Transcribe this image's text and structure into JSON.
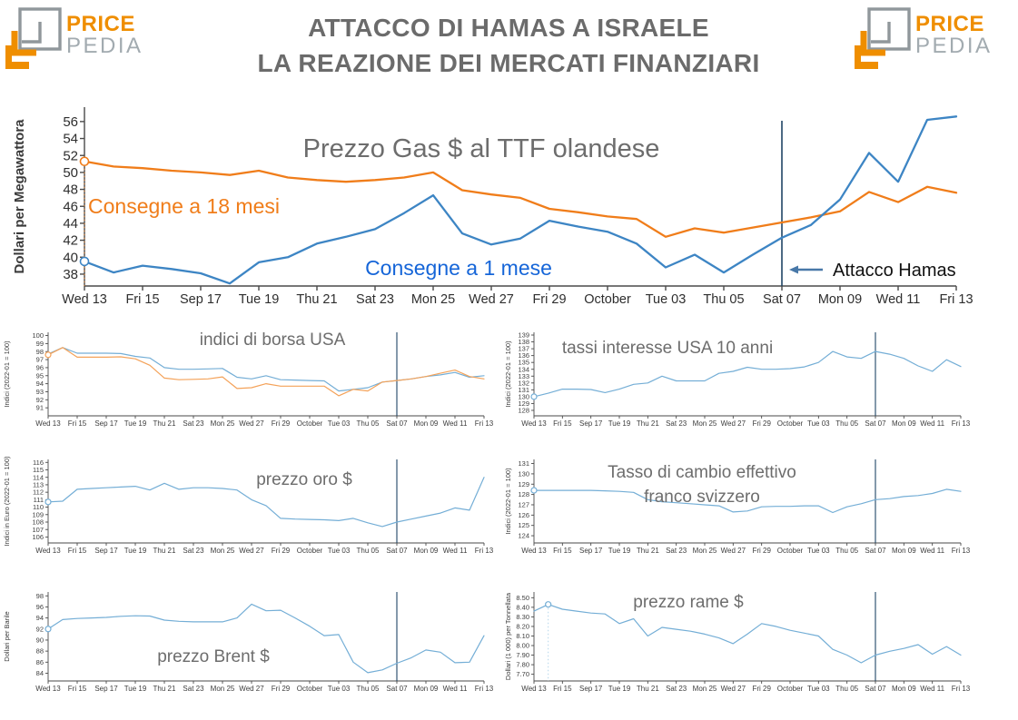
{
  "header": {
    "title_line1": "ATTACCO DI HAMAS A ISRAELE",
    "title_line2": "LA REAZIONE DEI MERCATI FINANZIARI",
    "logo_word_top": "PRICE",
    "logo_word_bottom": "PEDIA"
  },
  "icons": {
    "logo_icon": "pricepedia-nested-squares-icon"
  },
  "colors": {
    "main_orange": "#f07d1a",
    "main_blue": "#3d85c4",
    "small_blue": "#74aed6",
    "small_orange": "#f4a259",
    "event_line": "#1f4566",
    "series_label_blue_text": "#1565d8",
    "arrow": "#4878a8",
    "chart_title_gray": "#6d6d6d",
    "axis": "#4a4a4a",
    "logo_orange": "#ef8e00",
    "logo_gray": "#a2abb0"
  },
  "chart_data": [
    {
      "id": "gas-ttf",
      "type": "line",
      "title": "Prezzo Gas $ al TTF olandese",
      "ylabel": "Dollari per Megawattora",
      "categories": [
        "Wed 13",
        "Fri 15",
        "Sep 17",
        "Tue 19",
        "Thu 21",
        "Sat 23",
        "Mon 25",
        "Wed 27",
        "Fri 29",
        "October",
        "Tue 03",
        "Thu 05",
        "Sat 07",
        "Mon 09",
        "Wed 11",
        "Fri 13"
      ],
      "ytick_labels": [
        "38",
        "40",
        "42",
        "44",
        "46",
        "48",
        "50",
        "52",
        "54",
        "56"
      ],
      "ylim": [
        36.6,
        57.7
      ],
      "grid": false,
      "event_line_index": 24,
      "event_label": "Attacco Hamas",
      "series": [
        {
          "name": "Consegne a 18 mesi",
          "color": "#f07d1a",
          "marker_index": 0,
          "dropline_index": 0,
          "values": [
            51.3,
            50.7,
            50.5,
            50.2,
            50.0,
            49.7,
            50.2,
            49.4,
            49.1,
            48.9,
            49.1,
            49.4,
            50.0,
            47.9,
            47.4,
            47.0,
            45.7,
            45.3,
            44.8,
            44.5,
            42.4,
            43.4,
            42.9,
            43.5,
            44.1,
            44.7,
            45.4,
            47.7,
            46.5,
            48.3,
            47.6
          ]
        },
        {
          "name": "Consegne a 1 mese",
          "color": "#3d85c4",
          "marker_index": 0,
          "values": [
            39.5,
            38.2,
            39.0,
            38.6,
            38.1,
            36.9,
            39.4,
            40.0,
            41.6,
            42.4,
            43.3,
            45.2,
            47.3,
            42.8,
            41.5,
            42.2,
            44.3,
            43.6,
            43.0,
            41.6,
            38.8,
            40.3,
            38.2,
            40.3,
            42.3,
            43.8,
            46.8,
            52.3,
            48.9,
            56.2,
            56.6
          ]
        }
      ]
    },
    {
      "id": "borsa-usa",
      "type": "line",
      "title": "indici di borsa USA",
      "ylabel": "Indici (2022-01 = 100)",
      "categories": [
        "Wed 13",
        "Fri 15",
        "Sep 17",
        "Tue 19",
        "Thu 21",
        "Sat 23",
        "Mon 25",
        "Wed 27",
        "Fri 29",
        "October",
        "Tue 03",
        "Thu 05",
        "Sat 07",
        "Mon 09",
        "Wed 11",
        "Fri 13"
      ],
      "ytick_labels": [
        "91",
        "92",
        "93",
        "94",
        "95",
        "96",
        "97",
        "98",
        "99",
        "100"
      ],
      "ylim": [
        90.0,
        100.4
      ],
      "grid": false,
      "event_line_index": 24,
      "series": [
        {
          "color": "#74aed6",
          "values": [
            97.7,
            98.5,
            97.8,
            97.8,
            97.8,
            97.75,
            97.4,
            97.2,
            96.0,
            95.8,
            95.8,
            95.85,
            95.9,
            94.8,
            94.6,
            95.0,
            94.5,
            94.45,
            94.4,
            94.35,
            93.1,
            93.3,
            93.5,
            94.2,
            94.4,
            94.6,
            94.9,
            95.1,
            95.4,
            94.8,
            95.0
          ]
        },
        {
          "color": "#f4a259",
          "marker_index": 0,
          "values": [
            97.6,
            98.5,
            97.3,
            97.3,
            97.3,
            97.35,
            97.1,
            96.3,
            94.7,
            94.5,
            94.55,
            94.6,
            94.85,
            93.4,
            93.5,
            94.0,
            93.7,
            93.7,
            93.7,
            93.7,
            92.5,
            93.3,
            93.1,
            94.2,
            94.4,
            94.6,
            94.9,
            95.3,
            95.7,
            94.9,
            94.6
          ]
        }
      ]
    },
    {
      "id": "tassi-usa",
      "type": "line",
      "title": "tassi interesse USA 10 anni",
      "ylabel": "Indici (2022-01 = 100)",
      "categories": [
        "Wed 13",
        "Fri 15",
        "Sep 17",
        "Tue 19",
        "Thu 21",
        "Sat 23",
        "Mon 25",
        "Wed 27",
        "Fri 29",
        "October",
        "Tue 03",
        "Thu 05",
        "Sat 07",
        "Mon 09",
        "Wed 11",
        "Fri 13"
      ],
      "ytick_labels": [
        "128",
        "129",
        "130",
        "131",
        "132",
        "133",
        "134",
        "135",
        "136",
        "137",
        "138",
        "139"
      ],
      "ylim": [
        127.2,
        139.4
      ],
      "grid": false,
      "event_line_index": 24,
      "series": [
        {
          "color": "#74aed6",
          "marker_index": 0,
          "values": [
            130.0,
            130.5,
            131.1,
            131.1,
            131.05,
            130.6,
            131.1,
            131.8,
            132.0,
            133.0,
            132.3,
            132.3,
            132.3,
            133.4,
            133.7,
            134.3,
            134.0,
            134.0,
            134.1,
            134.35,
            135.0,
            136.6,
            135.8,
            135.6,
            136.6,
            136.2,
            135.6,
            134.5,
            133.7,
            135.4,
            134.4
          ]
        }
      ]
    },
    {
      "id": "oro",
      "type": "line",
      "title": "prezzo oro $",
      "ylabel": "Indici in Euro (2022-01 = 100)",
      "categories": [
        "Wed 13",
        "Fri 15",
        "Sep 17",
        "Tue 19",
        "Thu 21",
        "Sat 23",
        "Mon 25",
        "Wed 27",
        "Fri 29",
        "October",
        "Tue 03",
        "Thu 05",
        "Sat 07",
        "Mon 09",
        "Wed 11",
        "Fri 13"
      ],
      "ytick_labels": [
        "106",
        "107",
        "108",
        "109",
        "110",
        "111",
        "112",
        "113",
        "114",
        "115",
        "116"
      ],
      "ylim": [
        105.2,
        116.4
      ],
      "grid": false,
      "event_line_index": 24,
      "series": [
        {
          "color": "#74aed6",
          "marker_index": 0,
          "values": [
            110.7,
            110.8,
            112.4,
            112.5,
            112.6,
            112.7,
            112.8,
            112.3,
            113.2,
            112.4,
            112.6,
            112.6,
            112.5,
            112.3,
            111.0,
            110.2,
            108.5,
            108.4,
            108.35,
            108.3,
            108.2,
            108.5,
            107.9,
            107.4,
            108.0,
            108.4,
            108.8,
            109.2,
            109.9,
            109.6,
            114.0
          ]
        }
      ]
    },
    {
      "id": "franco-svizzero",
      "type": "line",
      "title": [
        "Tasso di cambio effettivo",
        "franco svizzero"
      ],
      "ylabel": "Indici (2022-01 = 100)",
      "categories": [
        "Wed 13",
        "Fri 15",
        "Sep 17",
        "Tue 19",
        "Thu 21",
        "Sat 23",
        "Mon 25",
        "Wed 27",
        "Fri 29",
        "October",
        "Tue 03",
        "Thu 05",
        "Sat 07",
        "Mon 09",
        "Wed 11",
        "Fri 13"
      ],
      "ytick_labels": [
        "124",
        "125",
        "126",
        "127",
        "128",
        "129",
        "130",
        "131"
      ],
      "ylim": [
        123.3,
        131.4
      ],
      "grid": false,
      "event_line_index": 24,
      "series": [
        {
          "color": "#74aed6",
          "marker_index": 0,
          "values": [
            128.4,
            128.4,
            128.4,
            128.4,
            128.4,
            128.35,
            128.3,
            128.2,
            127.5,
            127.3,
            127.2,
            127.1,
            127.0,
            126.9,
            126.3,
            126.4,
            126.8,
            126.85,
            126.85,
            126.9,
            126.9,
            126.25,
            126.8,
            127.1,
            127.5,
            127.6,
            127.8,
            127.9,
            128.1,
            128.5,
            128.3
          ]
        }
      ]
    },
    {
      "id": "brent",
      "type": "line",
      "title": "prezzo Brent $",
      "ylabel": "Dollari per Barile",
      "categories": [
        "Wed 13",
        "Fri 15",
        "Sep 17",
        "Tue 19",
        "Thu 21",
        "Sat 23",
        "Mon 25",
        "Wed 27",
        "Fri 29",
        "October",
        "Tue 03",
        "Thu 05",
        "Sat 07",
        "Mon 09",
        "Wed 11",
        "Fri 13"
      ],
      "ytick_labels": [
        "84",
        "86",
        "88",
        "90",
        "92",
        "94",
        "96",
        "98"
      ],
      "ylim": [
        82.6,
        98.7
      ],
      "grid": false,
      "event_line_index": 24,
      "series": [
        {
          "color": "#74aed6",
          "marker_index": 0,
          "values": [
            92.0,
            93.7,
            93.9,
            94.0,
            94.1,
            94.3,
            94.4,
            94.35,
            93.6,
            93.4,
            93.3,
            93.3,
            93.3,
            94.0,
            96.5,
            95.3,
            95.4,
            94.0,
            92.5,
            90.8,
            91.0,
            86.0,
            84.1,
            84.6,
            85.8,
            86.8,
            88.2,
            87.8,
            85.9,
            86.0,
            90.8
          ]
        }
      ]
    },
    {
      "id": "rame",
      "type": "line",
      "title": "prezzo rame $",
      "ylabel": "Dollari (1 000) per Tonnellata",
      "categories": [
        "Wed 13",
        "Fri 15",
        "Sep 17",
        "Tue 19",
        "Thu 21",
        "Sat 23",
        "Mon 25",
        "Wed 27",
        "Fri 29",
        "October",
        "Tue 03",
        "Thu 05",
        "Sat 07",
        "Mon 09",
        "Wed 11",
        "Fri 13"
      ],
      "ytick_labels": [
        "7.70",
        "7.80",
        "7.90",
        "8.00",
        "8.10",
        "8.20",
        "8.30",
        "8.40",
        "8.50"
      ],
      "ylim": [
        7.63,
        8.56
      ],
      "grid": false,
      "event_line_index": 24,
      "series": [
        {
          "color": "#74aed6",
          "marker_index": 1,
          "dropline_index": 1,
          "dropline_color": "#a8cfe8",
          "values": [
            8.36,
            8.43,
            8.38,
            8.36,
            8.34,
            8.33,
            8.23,
            8.28,
            8.1,
            8.19,
            8.17,
            8.15,
            8.12,
            8.08,
            8.02,
            8.12,
            8.23,
            8.2,
            8.16,
            8.13,
            8.1,
            7.96,
            7.9,
            7.82,
            7.9,
            7.94,
            7.97,
            8.01,
            7.91,
            7.99,
            7.9
          ]
        }
      ]
    }
  ]
}
